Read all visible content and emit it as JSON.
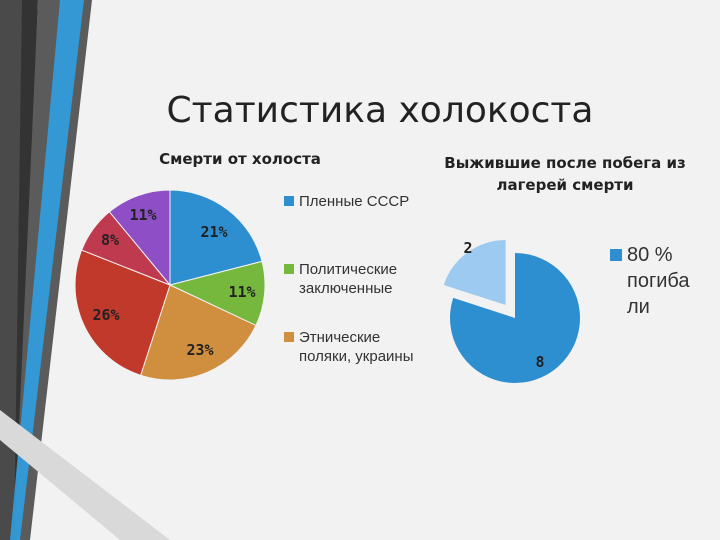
{
  "slide": {
    "title": "Статистика холокоста"
  },
  "chart_data": [
    {
      "type": "pie",
      "title": "Смерти от холоста",
      "categories": [
        "Пленные СССР",
        "Политические заключенные",
        "Этнические поляки, украины",
        "",
        "",
        ""
      ],
      "values": [
        21,
        11,
        23,
        26,
        8,
        11
      ],
      "data_labels": [
        "21%",
        "11%",
        "23%",
        "26%",
        "8%",
        "11%"
      ],
      "colors": [
        "#2e8fd0",
        "#76b83e",
        "#d08f3e",
        "#c0392b",
        "#c03a4f",
        "#8e4fc6"
      ],
      "legend_placement": "right"
    },
    {
      "type": "pie",
      "title": "Выжившие после побега из лагерей смерти",
      "categories": [
        "80 % погиба ли",
        ""
      ],
      "values": [
        8,
        2
      ],
      "data_labels": [
        "8",
        "2"
      ],
      "colors": [
        "#2e8fd0",
        "#9ccaf0"
      ],
      "legend_placement": "right"
    }
  ]
}
